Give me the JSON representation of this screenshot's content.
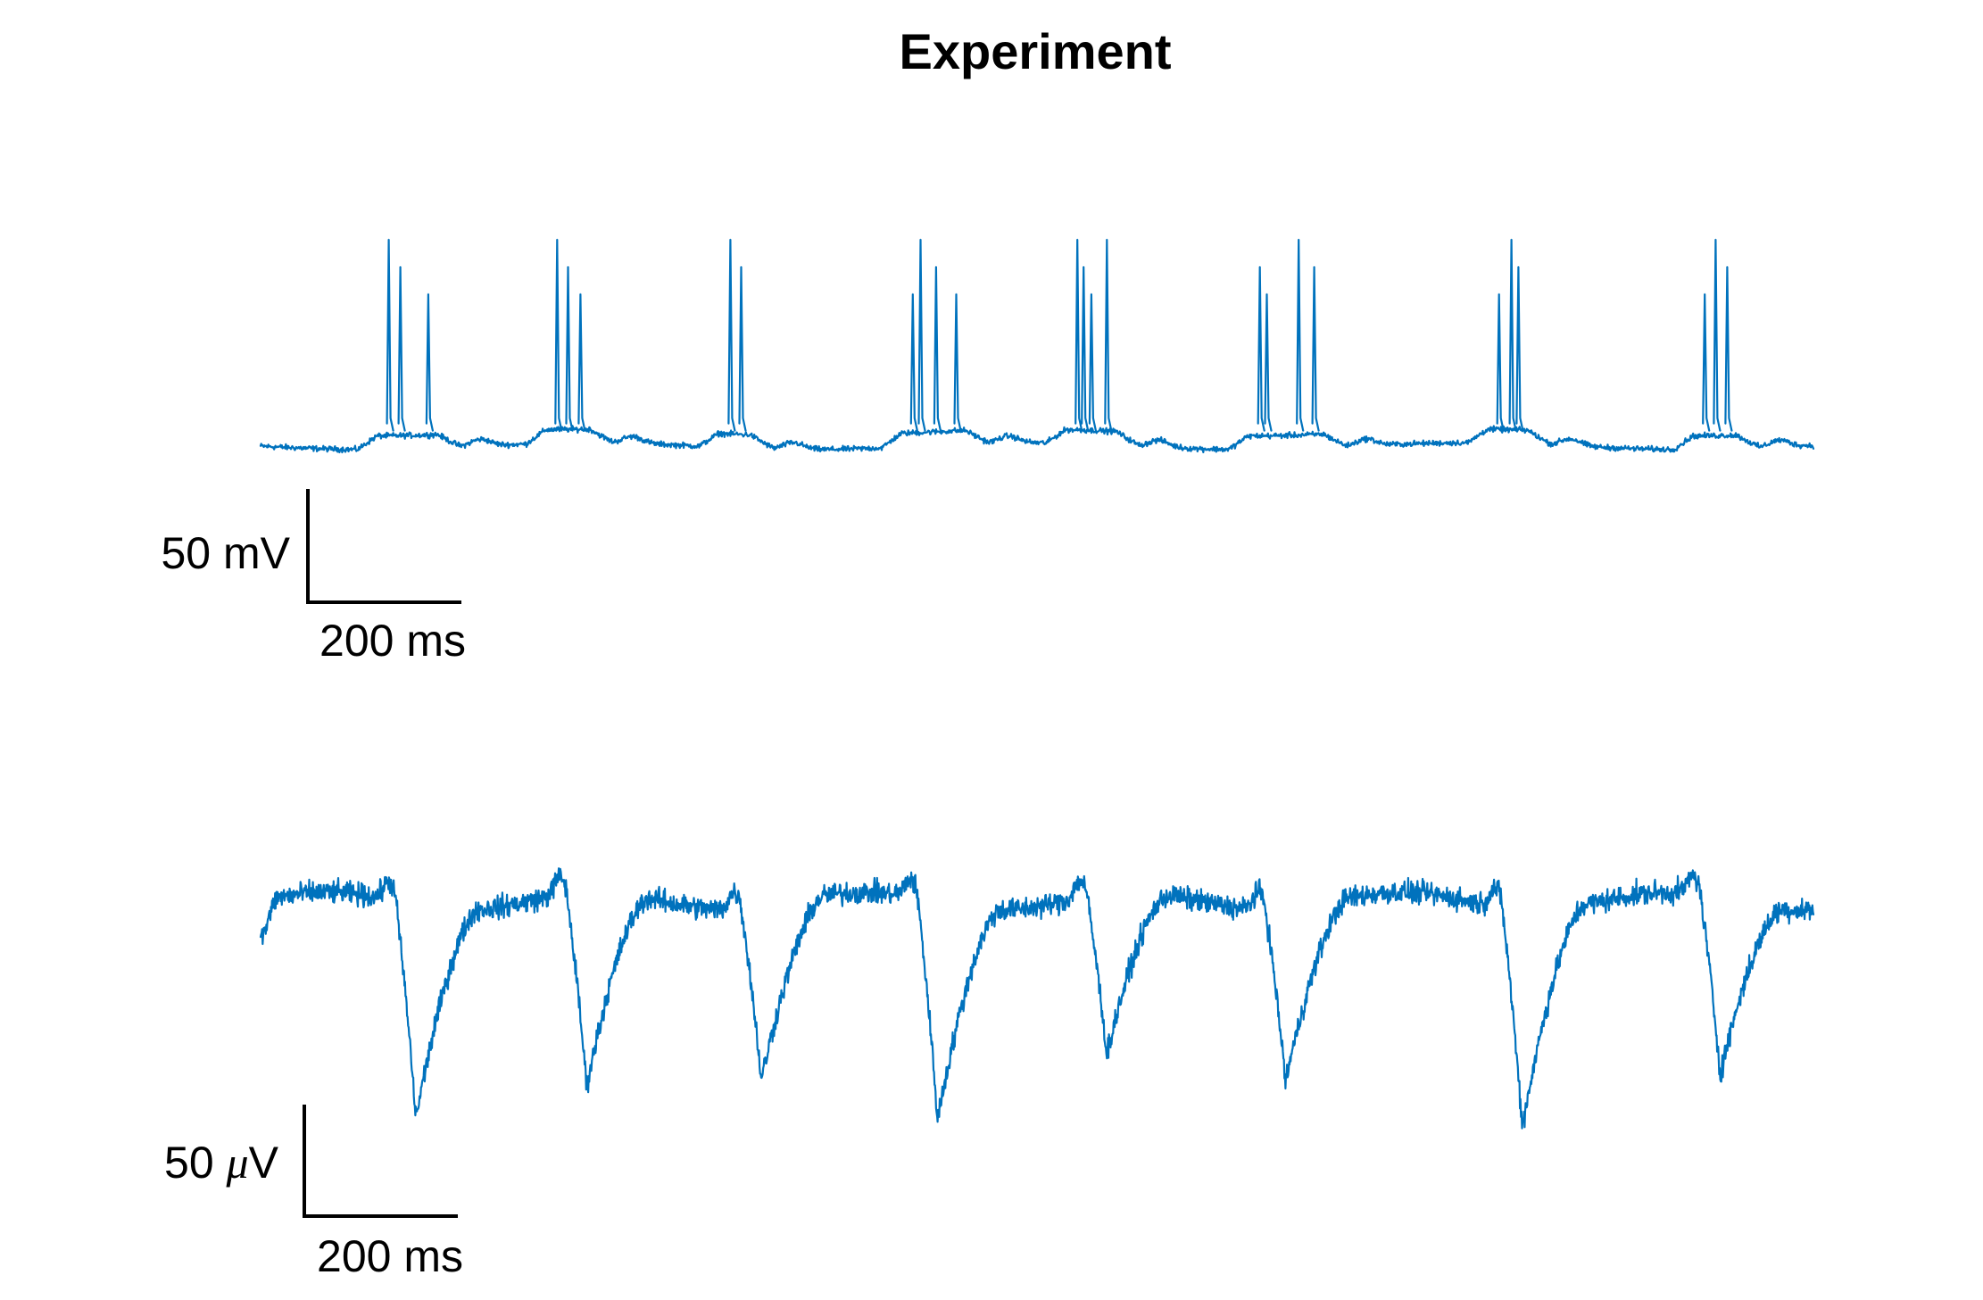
{
  "figure": {
    "title": "Experiment",
    "trace_color": "#0072BD"
  },
  "chart_data": [
    {
      "type": "line",
      "name": "",
      "scalebar": {
        "vertical_label": "50 mV",
        "horizontal_label": "200 ms",
        "vertical_value": 50,
        "vertical_unit": "mV",
        "horizontal_value": 200,
        "horizontal_unit": "ms"
      },
      "duration_ms": 2000,
      "baseline_mV": 0,
      "bursts": [
        {
          "spikes_ms": [
            165,
            180,
            216
          ]
        },
        {
          "spikes_ms": [
            382,
            396,
            412
          ]
        },
        {
          "spikes_ms": [
            605,
            619
          ]
        },
        {
          "spikes_ms": [
            840,
            850,
            870,
            896
          ]
        },
        {
          "spikes_ms": [
            1052,
            1060,
            1070,
            1090
          ]
        },
        {
          "spikes_ms": [
            1287,
            1296,
            1337,
            1357
          ]
        },
        {
          "spikes_ms": [
            1595,
            1611,
            1620
          ]
        },
        {
          "spikes_ms": [
            1860,
            1874,
            1889
          ]
        }
      ],
      "spike_peak_mV": 85
    },
    {
      "type": "line",
      "name": "",
      "scalebar": {
        "vertical_label_prefix": "50 ",
        "vertical_label_mu": "μ",
        "vertical_label_suffix": "V",
        "horizontal_label": "200 ms",
        "vertical_value": 50,
        "vertical_unit": "μV",
        "horizontal_value": 200,
        "horizontal_unit": "ms"
      },
      "duration_ms": 2000,
      "baseline_uV": 0,
      "troughs": [
        {
          "t_ms": 200,
          "depth_uV": -95
        },
        {
          "t_ms": 420,
          "depth_uV": -87
        },
        {
          "t_ms": 645,
          "depth_uV": -77
        },
        {
          "t_ms": 872,
          "depth_uV": -97
        },
        {
          "t_ms": 1090,
          "depth_uV": -72
        },
        {
          "t_ms": 1320,
          "depth_uV": -77
        },
        {
          "t_ms": 1625,
          "depth_uV": -97
        },
        {
          "t_ms": 1880,
          "depth_uV": -79
        }
      ]
    }
  ]
}
